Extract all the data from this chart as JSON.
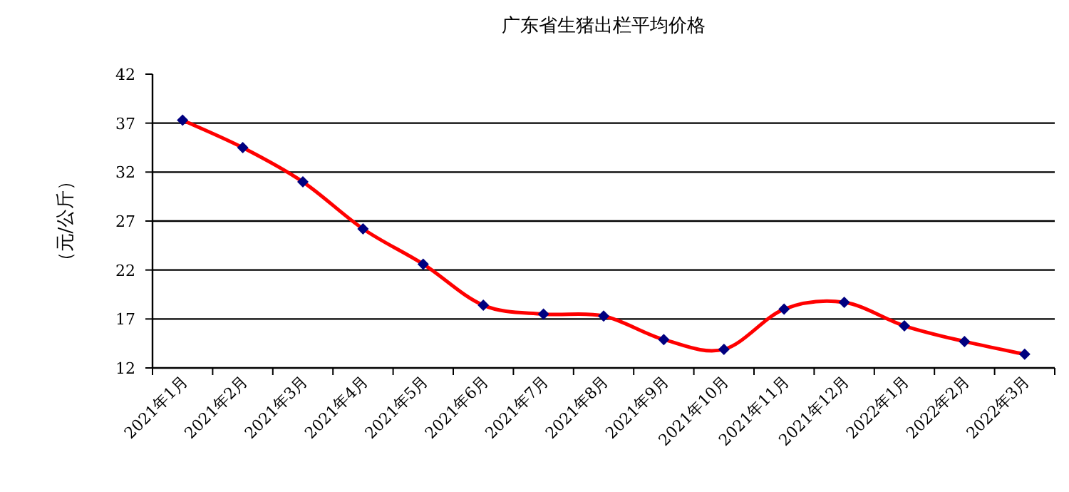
{
  "chart_data": {
    "type": "line",
    "title": "广东省生猪出栏平均价格",
    "ylabel": "（元/公斤）",
    "categories": [
      "2021年1月",
      "2021年2月",
      "2021年3月",
      "2021年4月",
      "2021年5月",
      "2021年6月",
      "2021年7月",
      "2021年8月",
      "2021年9月",
      "2021年10月",
      "2021年11月",
      "2021年12月",
      "2022年1月",
      "2022年2月",
      "2022年3月"
    ],
    "series": [
      {
        "color": "#ff0000",
        "values": [
          37.3,
          34.5,
          31.0,
          26.2,
          22.6,
          18.4,
          17.5,
          17.3,
          14.9,
          13.9,
          18.0,
          18.7,
          16.3,
          14.7,
          13.4
        ]
      }
    ],
    "ylim": [
      12,
      42
    ],
    "yticks": [
      12,
      17,
      22,
      27,
      32,
      37,
      42
    ],
    "grid": "y",
    "marker": "diamond",
    "line_style": "solid"
  }
}
